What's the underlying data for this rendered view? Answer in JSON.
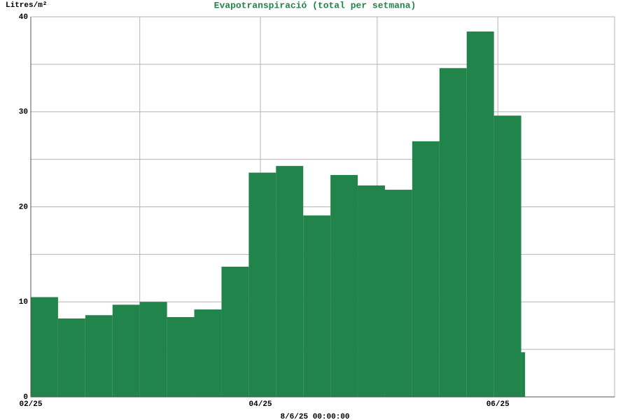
{
  "chart_data": {
    "type": "histogram",
    "title": "Evapotranspiració (total per setmana)",
    "y_label": "Litres/m²",
    "footer": "8/6/25 00:00:00",
    "color": "#21844b",
    "bins": [
      0,
      7,
      14,
      21,
      28,
      35,
      42,
      49,
      56,
      63,
      70,
      77,
      84,
      91,
      98,
      105,
      112,
      119,
      126,
      127
    ],
    "values": [
      10.5,
      8.25,
      8.6,
      9.7,
      10.0,
      8.4,
      9.2,
      13.7,
      23.6,
      24.3,
      19.1,
      23.35,
      22.25,
      21.8,
      26.9,
      34.6,
      38.45,
      29.6,
      4.7
    ],
    "xlim": [
      0,
      150
    ],
    "xticks": [
      {
        "value": 0,
        "label": "02/25"
      },
      {
        "value": 59,
        "label": "04/25"
      },
      {
        "value": 120,
        "label": "06/25"
      }
    ],
    "xgrid": [
      28,
      89,
      150
    ],
    "ylim": [
      0,
      40
    ],
    "yticks": [
      0,
      10,
      20,
      30,
      40
    ],
    "ygrid": [
      5,
      15,
      25,
      35
    ],
    "grid": true
  }
}
